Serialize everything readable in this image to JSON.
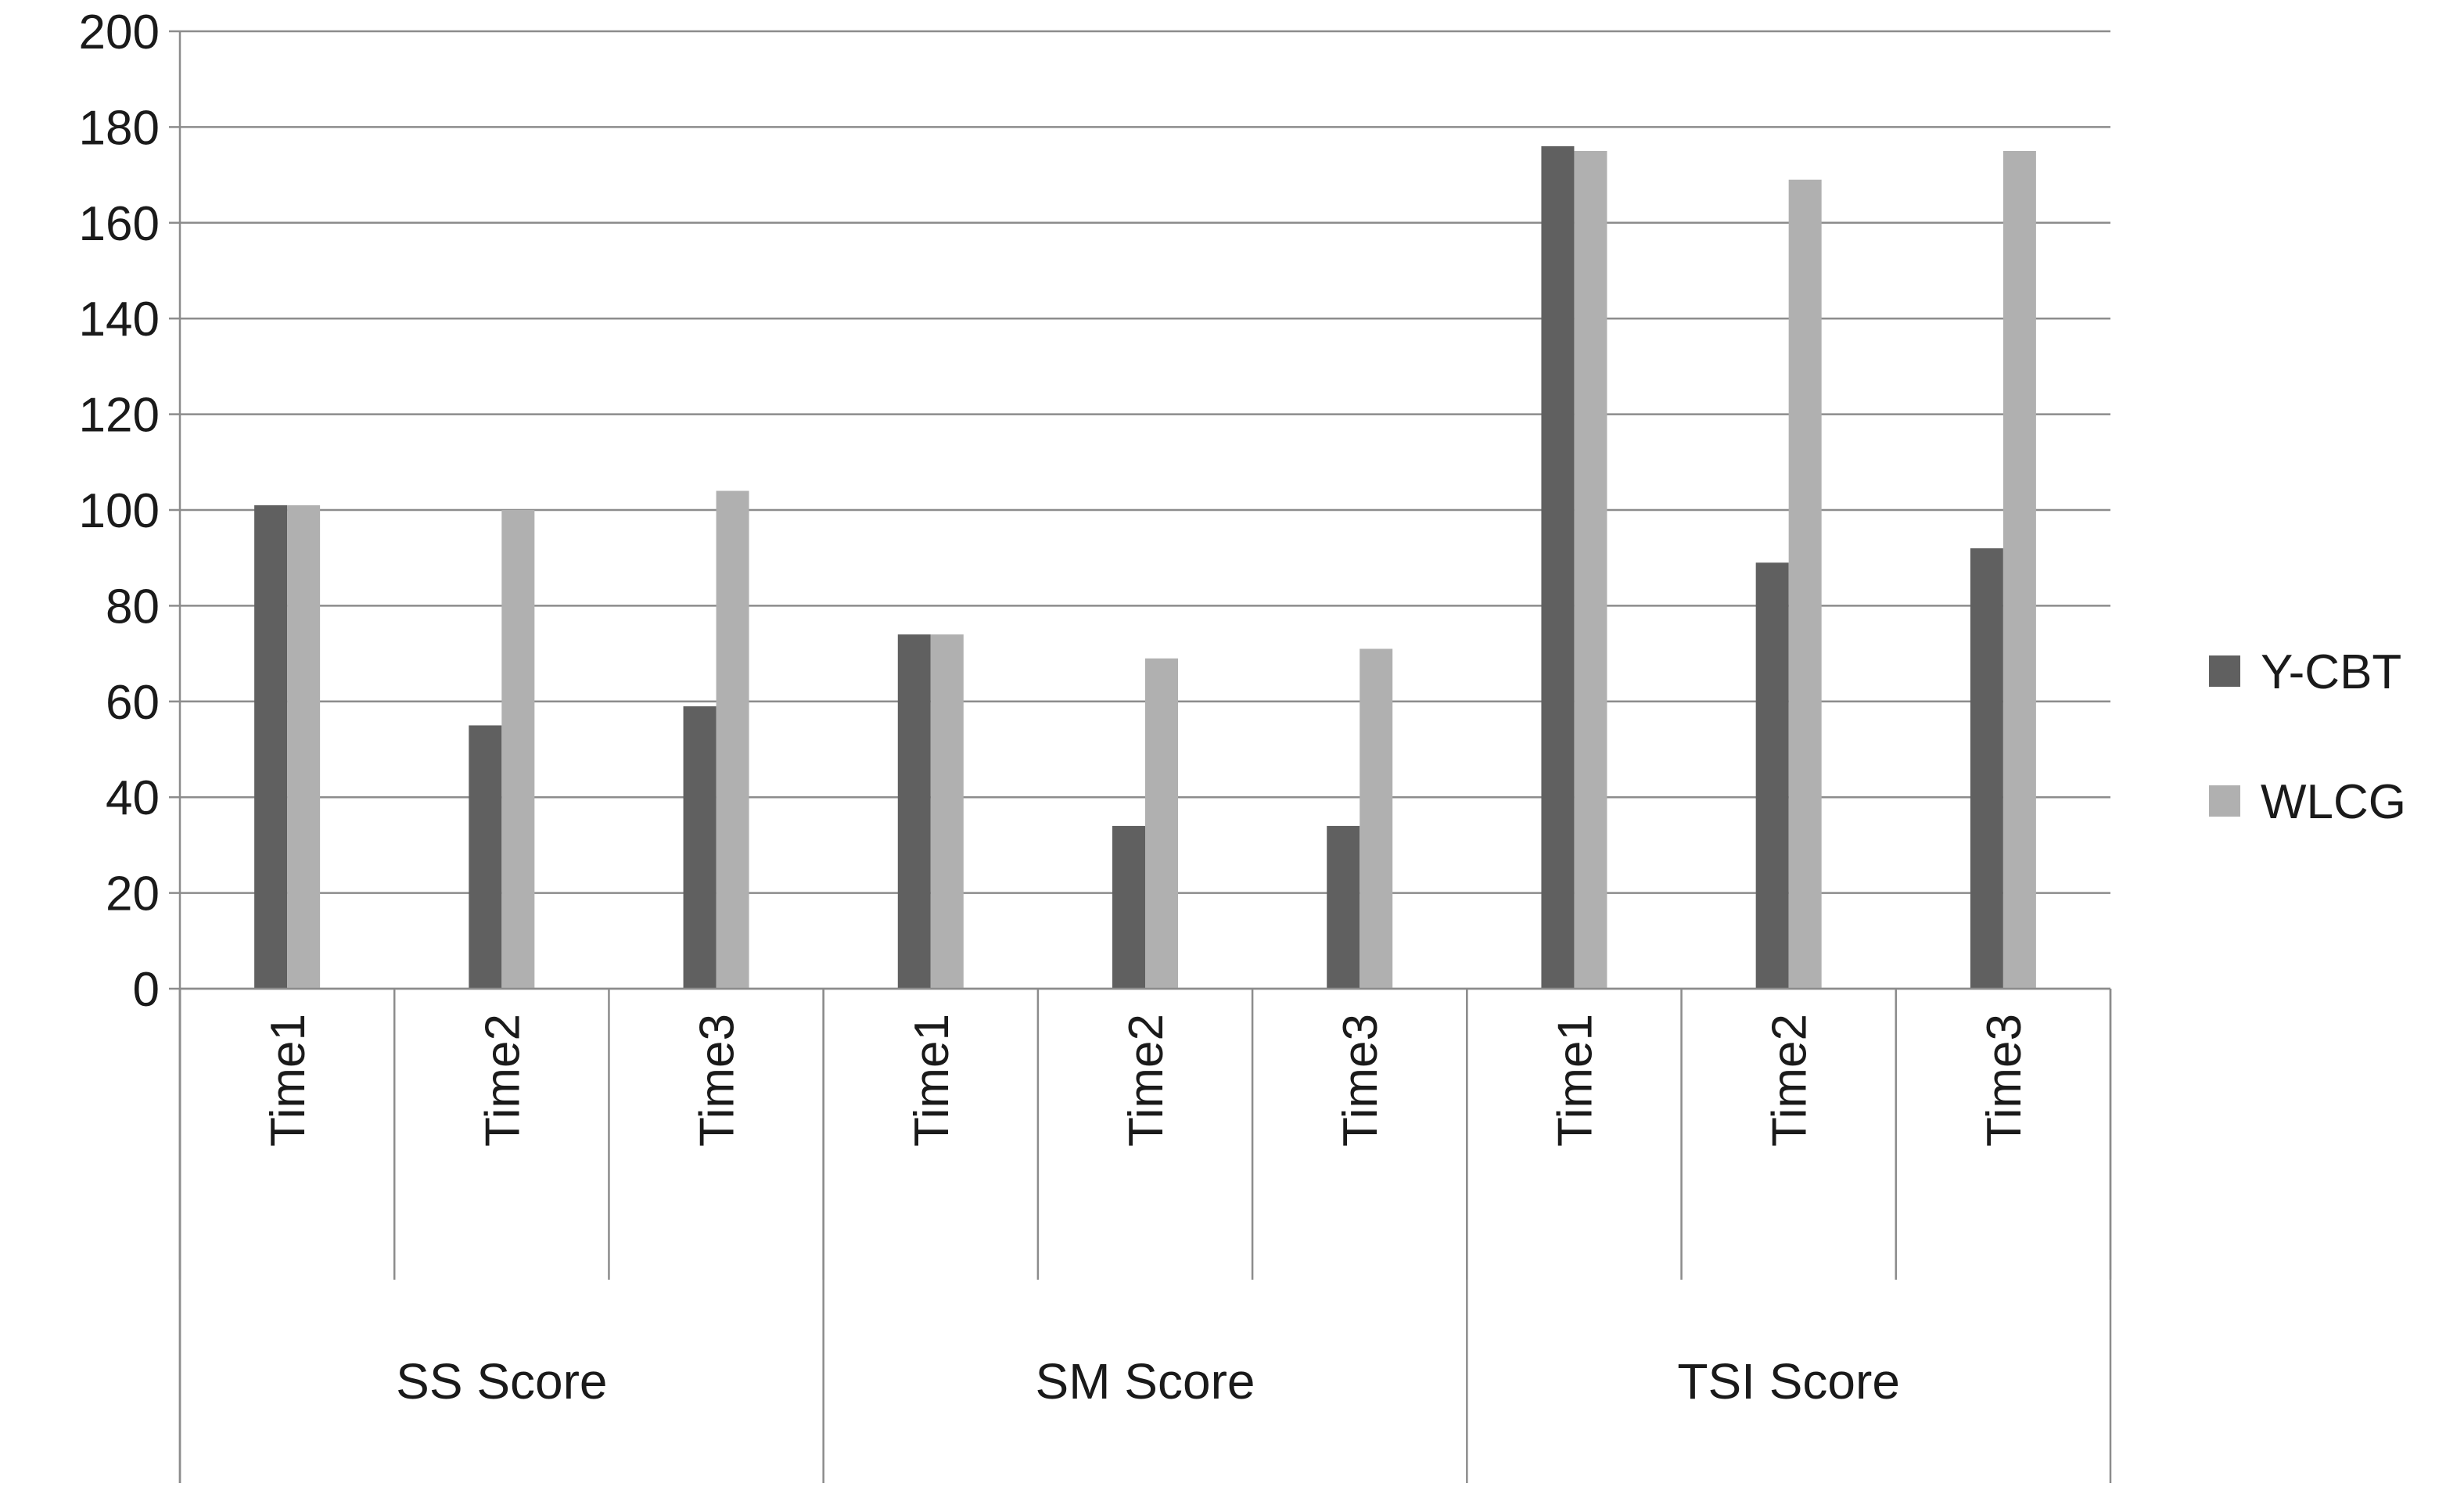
{
  "chart_data": {
    "type": "bar",
    "title": "",
    "xlabel": "",
    "ylabel": "",
    "ylim": [
      0,
      200
    ],
    "yticks": [
      0,
      20,
      40,
      60,
      80,
      100,
      120,
      140,
      160,
      180,
      200
    ],
    "grid": "horizontal",
    "legend_position": "right",
    "groups": [
      "SS Score",
      "SM Score",
      "TSI Score"
    ],
    "categories": [
      "Time1",
      "Time2",
      "Time3",
      "Time1",
      "Time2",
      "Time3",
      "Time1",
      "Time2",
      "Time3"
    ],
    "category_group": [
      0,
      0,
      0,
      1,
      1,
      1,
      2,
      2,
      2
    ],
    "series": [
      {
        "name": "Y-CBT",
        "color": "#606060",
        "values": [
          101,
          55,
          59,
          74,
          34,
          34,
          176,
          89,
          92
        ]
      },
      {
        "name": "WLCG",
        "color": "#b0b0b0",
        "values": [
          101,
          100,
          104,
          74,
          69,
          71,
          175,
          169,
          175
        ]
      }
    ]
  }
}
